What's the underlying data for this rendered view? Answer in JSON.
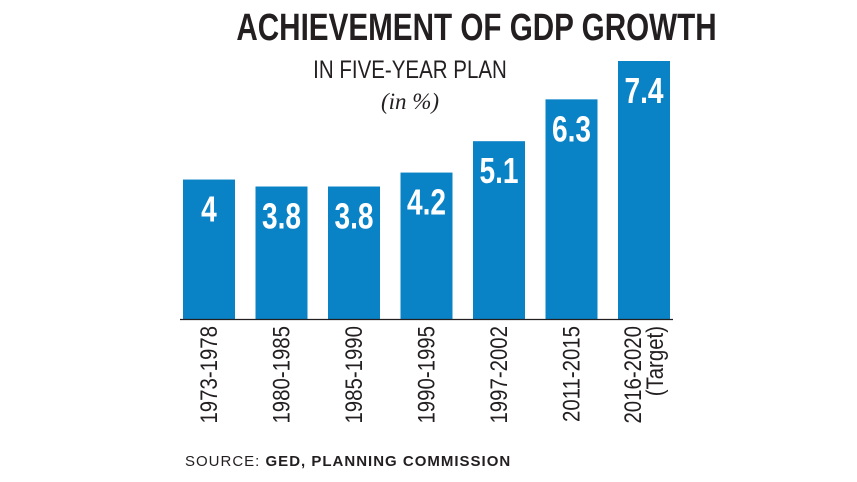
{
  "chart_data": {
    "type": "bar",
    "title": "ACHIEVEMENT OF GDP GROWTH",
    "subtitle": "IN FIVE-YEAR PLAN",
    "unit": "(in %)",
    "categories": [
      [
        "1973-1978"
      ],
      [
        "1980-1985"
      ],
      [
        "1985-1990"
      ],
      [
        "1990-1995"
      ],
      [
        "1997-2002"
      ],
      [
        "2011-2015"
      ],
      [
        "2016-2020",
        "(Target)"
      ]
    ],
    "values": [
      4,
      3.8,
      3.8,
      4.2,
      5.1,
      6.3,
      7.4
    ],
    "value_labels": [
      "4",
      "3.8",
      "3.8",
      "4.2",
      "5.1",
      "6.3",
      "7.4"
    ],
    "ylim": [
      0,
      7.4
    ],
    "grid": false,
    "bar_color": "#0a83c6"
  },
  "source": {
    "label": "SOURCE:",
    "value": "GED, PLANNING COMMISSION"
  }
}
